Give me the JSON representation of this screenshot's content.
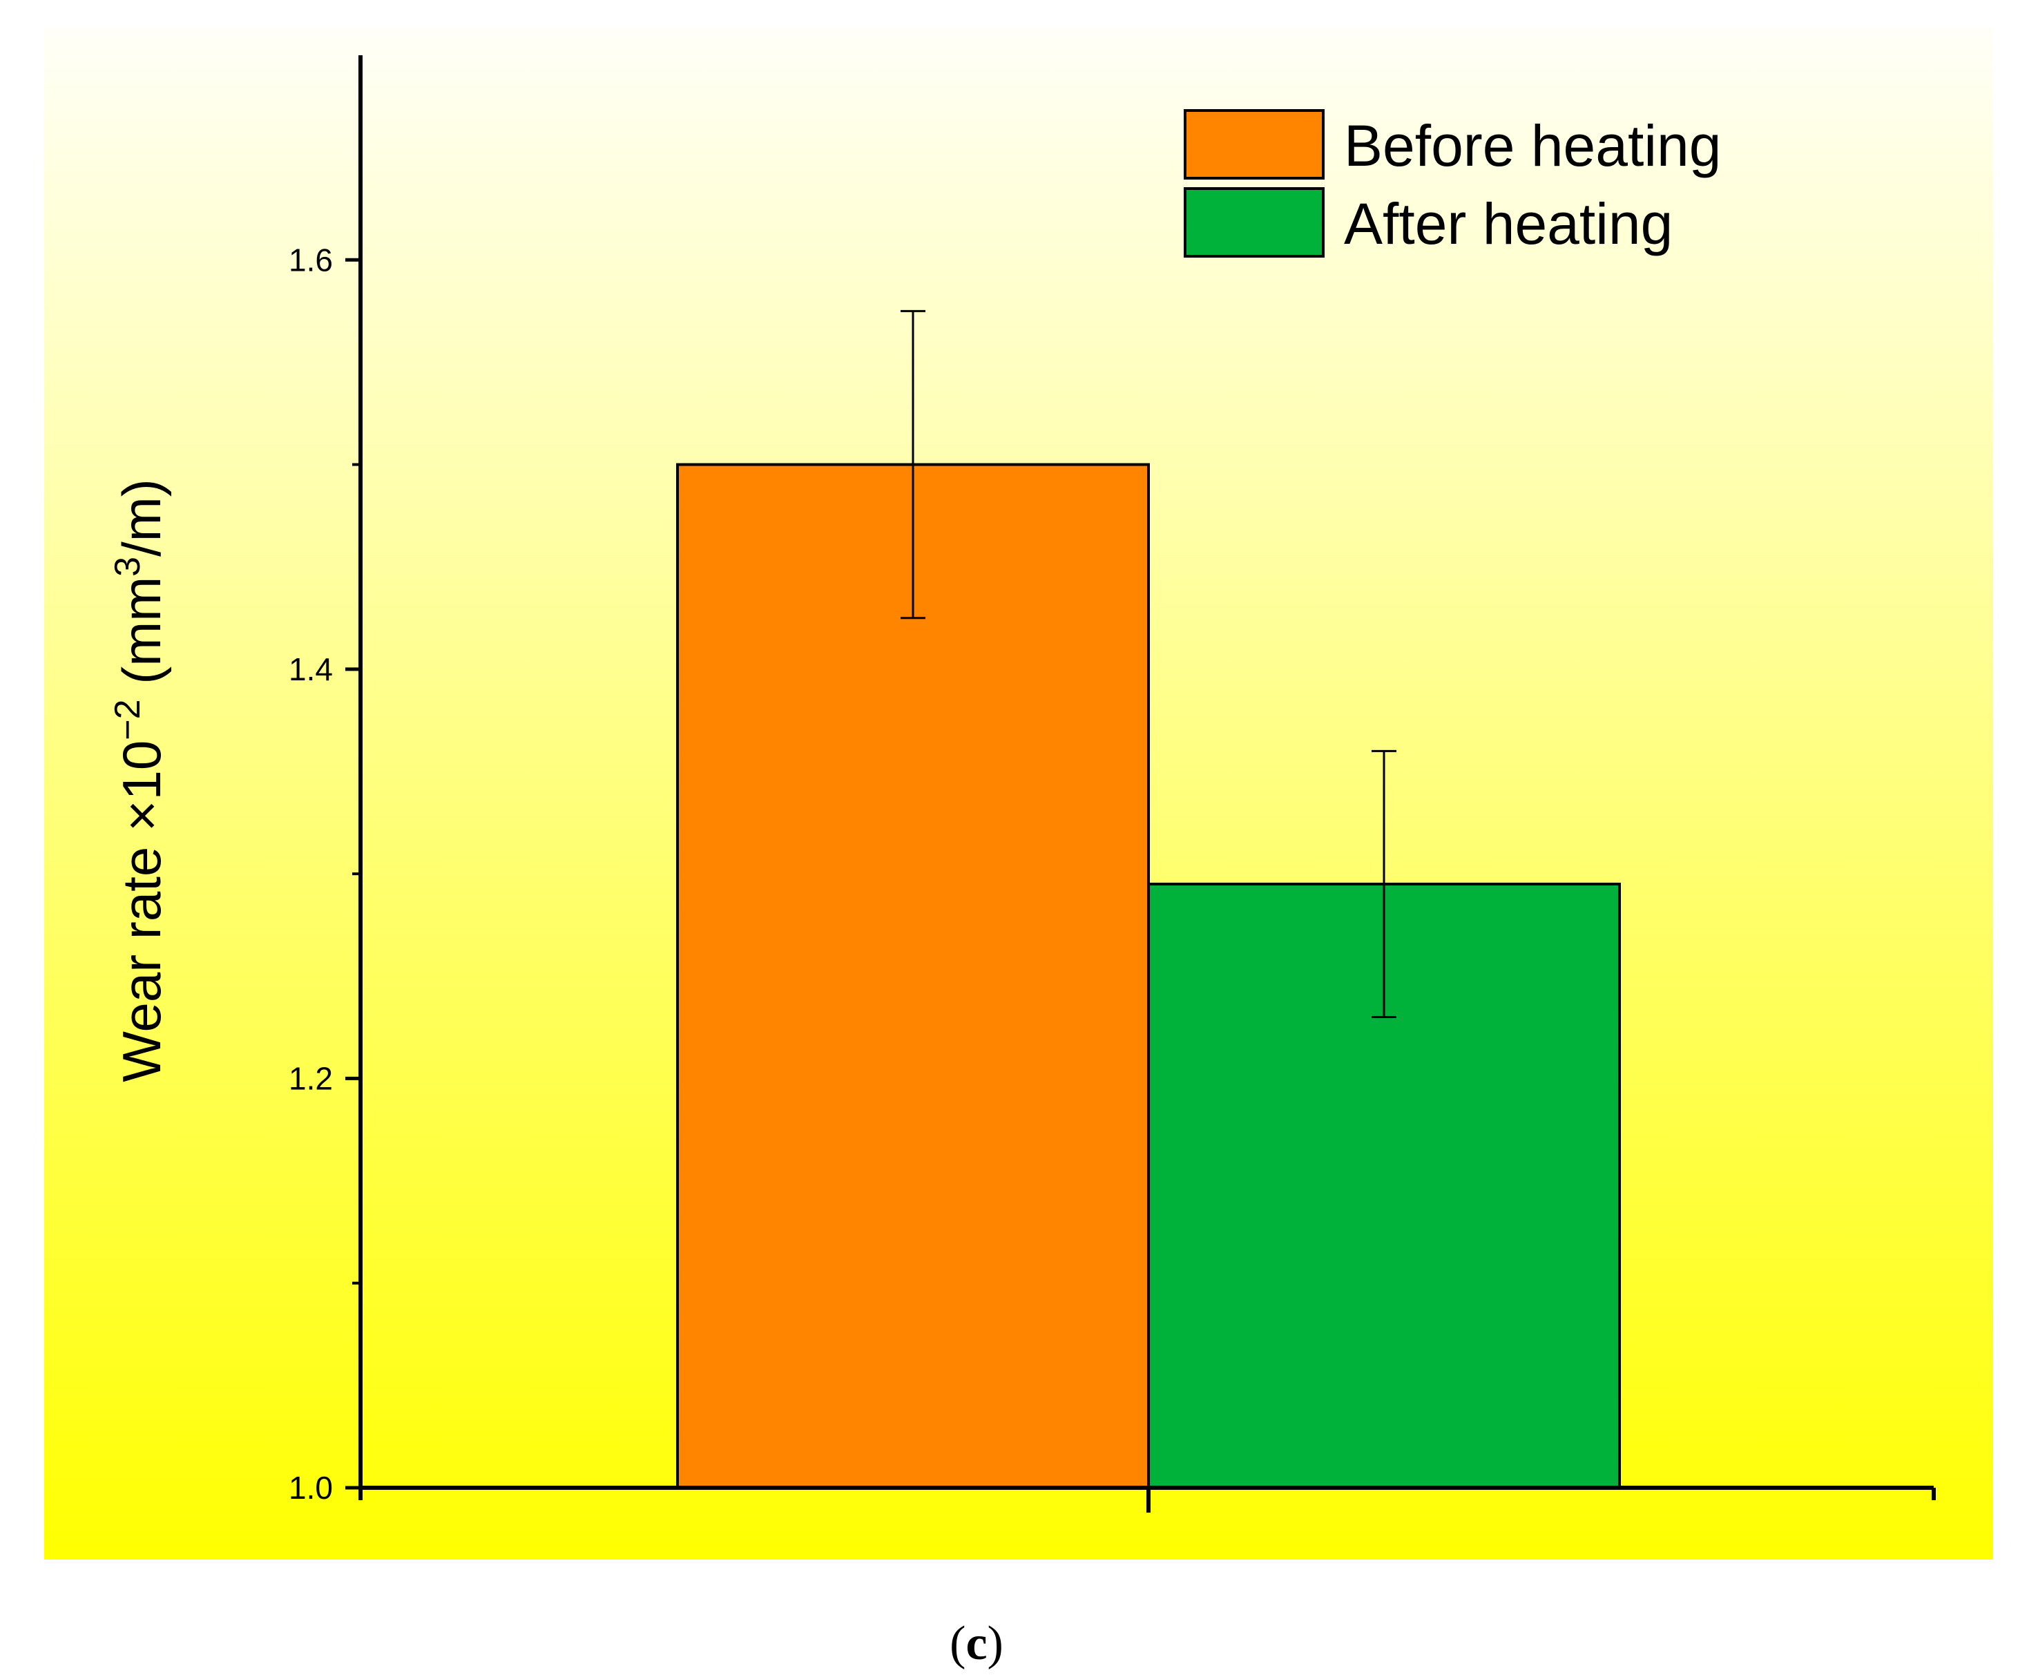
{
  "chart_data": {
    "type": "bar",
    "categories": [
      ""
    ],
    "series": [
      {
        "name": "Before heating",
        "values": [
          1.5
        ],
        "error": [
          0.075
        ],
        "color": "#FF8500"
      },
      {
        "name": "After heating",
        "values": [
          1.295
        ],
        "error": [
          0.065
        ],
        "color": "#00B239"
      }
    ],
    "title": "",
    "xlabel": "",
    "ylabel": {
      "prefix": "Wear rate ×10",
      "exponent": "−2",
      "unit_open": " (mm",
      "unit_exponent": "3",
      "unit_close": "/m)"
    },
    "ylim": [
      1.0,
      1.7
    ],
    "yticks": [
      1.0,
      1.2,
      1.4,
      1.6
    ],
    "ytick_labels": [
      "1.0",
      "1.2",
      "1.4",
      "1.6"
    ],
    "yminor_ticks": [
      1.1,
      1.3,
      1.5
    ],
    "legend_position": "top-right",
    "background": {
      "top": "#FFFFF8",
      "bottom": "#FFFF00"
    }
  },
  "caption": {
    "open": "(",
    "letter": "c",
    "close": ")"
  }
}
